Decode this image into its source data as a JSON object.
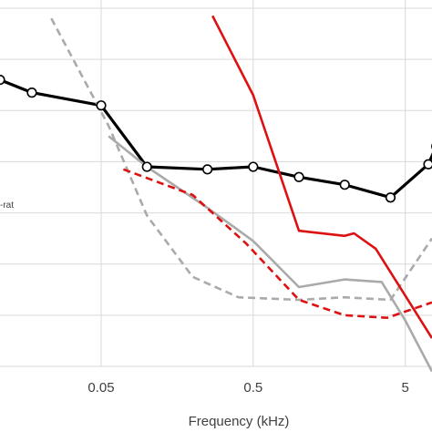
{
  "chart_data": {
    "type": "line",
    "title": "",
    "xlabel": "Frequency (kHz)",
    "ylabel": "",
    "x_scale": "log",
    "xlim": [
      0.0108,
      7.5
    ],
    "ylim": [
      0,
      7
    ],
    "x_ticks": [
      0.05,
      0.5,
      5
    ],
    "x_tick_labels": [
      "0.05",
      "0.5",
      "5"
    ],
    "y_gridlines": [
      0,
      1,
      2,
      3,
      4,
      5,
      6,
      7
    ],
    "grid": true,
    "legend_fragment": "-rat",
    "series": [
      {
        "color": "#000000",
        "style": "solid",
        "markers": "open-circle",
        "x": [
          0.0108,
          0.0175,
          0.05,
          0.1,
          0.25,
          0.5,
          1,
          2,
          4,
          7.1,
          8
        ],
        "y": [
          5.6,
          5.35,
          5.1,
          3.9,
          3.85,
          3.9,
          3.7,
          3.55,
          3.3,
          3.95,
          4.3
        ]
      },
      {
        "color": "#aaaaaa",
        "style": "solid",
        "markers": "none",
        "x": [
          0.056,
          0.1,
          0.25,
          0.5,
          1,
          2,
          3.5,
          5,
          7.5
        ],
        "y": [
          4.5,
          3.9,
          3.1,
          2.45,
          1.55,
          1.7,
          1.65,
          0.9,
          -0.1
        ]
      },
      {
        "color": "#aaaaaa",
        "style": "dashed",
        "markers": "none",
        "x": [
          0.0235,
          0.056,
          0.1,
          0.2,
          0.4,
          1,
          2,
          4,
          7.5
        ],
        "y": [
          6.8,
          4.7,
          2.95,
          1.75,
          1.35,
          1.3,
          1.35,
          1.3,
          2.5
        ]
      },
      {
        "color": "#dd1111",
        "style": "solid",
        "markers": "none",
        "x": [
          0.27,
          0.5,
          1,
          2,
          2.3,
          3.2,
          7.5
        ],
        "y": [
          6.85,
          5.3,
          2.65,
          2.55,
          2.6,
          2.3,
          0.55
        ]
      },
      {
        "color": "#dd1111",
        "style": "dashed",
        "markers": "none",
        "x": [
          0.07,
          0.2,
          0.45,
          1,
          2,
          3.8,
          7.5
        ],
        "y": [
          3.85,
          3.35,
          2.4,
          1.3,
          1.0,
          0.95,
          1.25
        ]
      }
    ]
  }
}
